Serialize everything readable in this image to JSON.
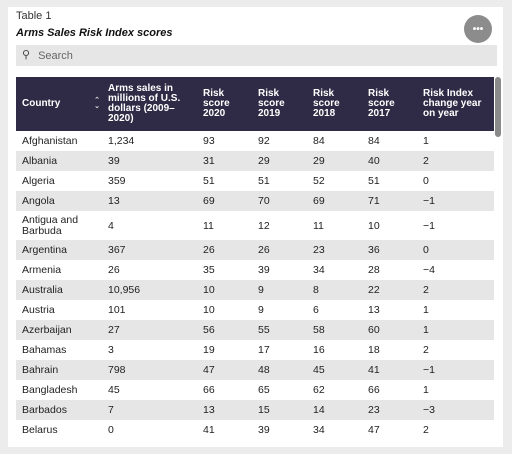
{
  "caption": "Table 1",
  "title": "Arms Sales Risk Index scores",
  "more_icon": "ellipsis-icon",
  "more_label": "•••",
  "search": {
    "placeholder": "Search",
    "icon": "search-icon",
    "glyph": "⚲"
  },
  "colors": {
    "header_bg": "#2f2a45",
    "stripe": "#e6e6e6",
    "button": "#8c8c8c"
  },
  "sort_glyph": "◇",
  "columns": [
    "Country",
    "Arms sales in millions of U.S. dollars (2009–2020)",
    "Risk score 2020",
    "Risk score 2019",
    "Risk score 2018",
    "Risk score 2017",
    "Risk Index change year on year"
  ],
  "rows": [
    [
      "Afghanistan",
      "1,234",
      "93",
      "92",
      "84",
      "84",
      "1"
    ],
    [
      "Albania",
      "39",
      "31",
      "29",
      "29",
      "40",
      "2"
    ],
    [
      "Algeria",
      "359",
      "51",
      "51",
      "52",
      "51",
      "0"
    ],
    [
      "Angola",
      "13",
      "69",
      "70",
      "69",
      "71",
      "−1"
    ],
    [
      "Antigua and Barbuda",
      "4",
      "11",
      "12",
      "11",
      "10",
      "−1"
    ],
    [
      "Argentina",
      "367",
      "26",
      "26",
      "23",
      "36",
      "0"
    ],
    [
      "Armenia",
      "26",
      "35",
      "39",
      "34",
      "28",
      "−4"
    ],
    [
      "Australia",
      "10,956",
      "10",
      "9",
      "8",
      "22",
      "2"
    ],
    [
      "Austria",
      "101",
      "10",
      "9",
      "6",
      "13",
      "1"
    ],
    [
      "Azerbaijan",
      "27",
      "56",
      "55",
      "58",
      "60",
      "1"
    ],
    [
      "Bahamas",
      "3",
      "19",
      "17",
      "16",
      "18",
      "2"
    ],
    [
      "Bahrain",
      "798",
      "47",
      "48",
      "45",
      "41",
      "−1"
    ],
    [
      "Bangladesh",
      "45",
      "66",
      "65",
      "62",
      "66",
      "1"
    ],
    [
      "Barbados",
      "7",
      "13",
      "15",
      "14",
      "23",
      "−3"
    ],
    [
      "Belarus",
      "0",
      "41",
      "39",
      "34",
      "47",
      "2"
    ]
  ]
}
